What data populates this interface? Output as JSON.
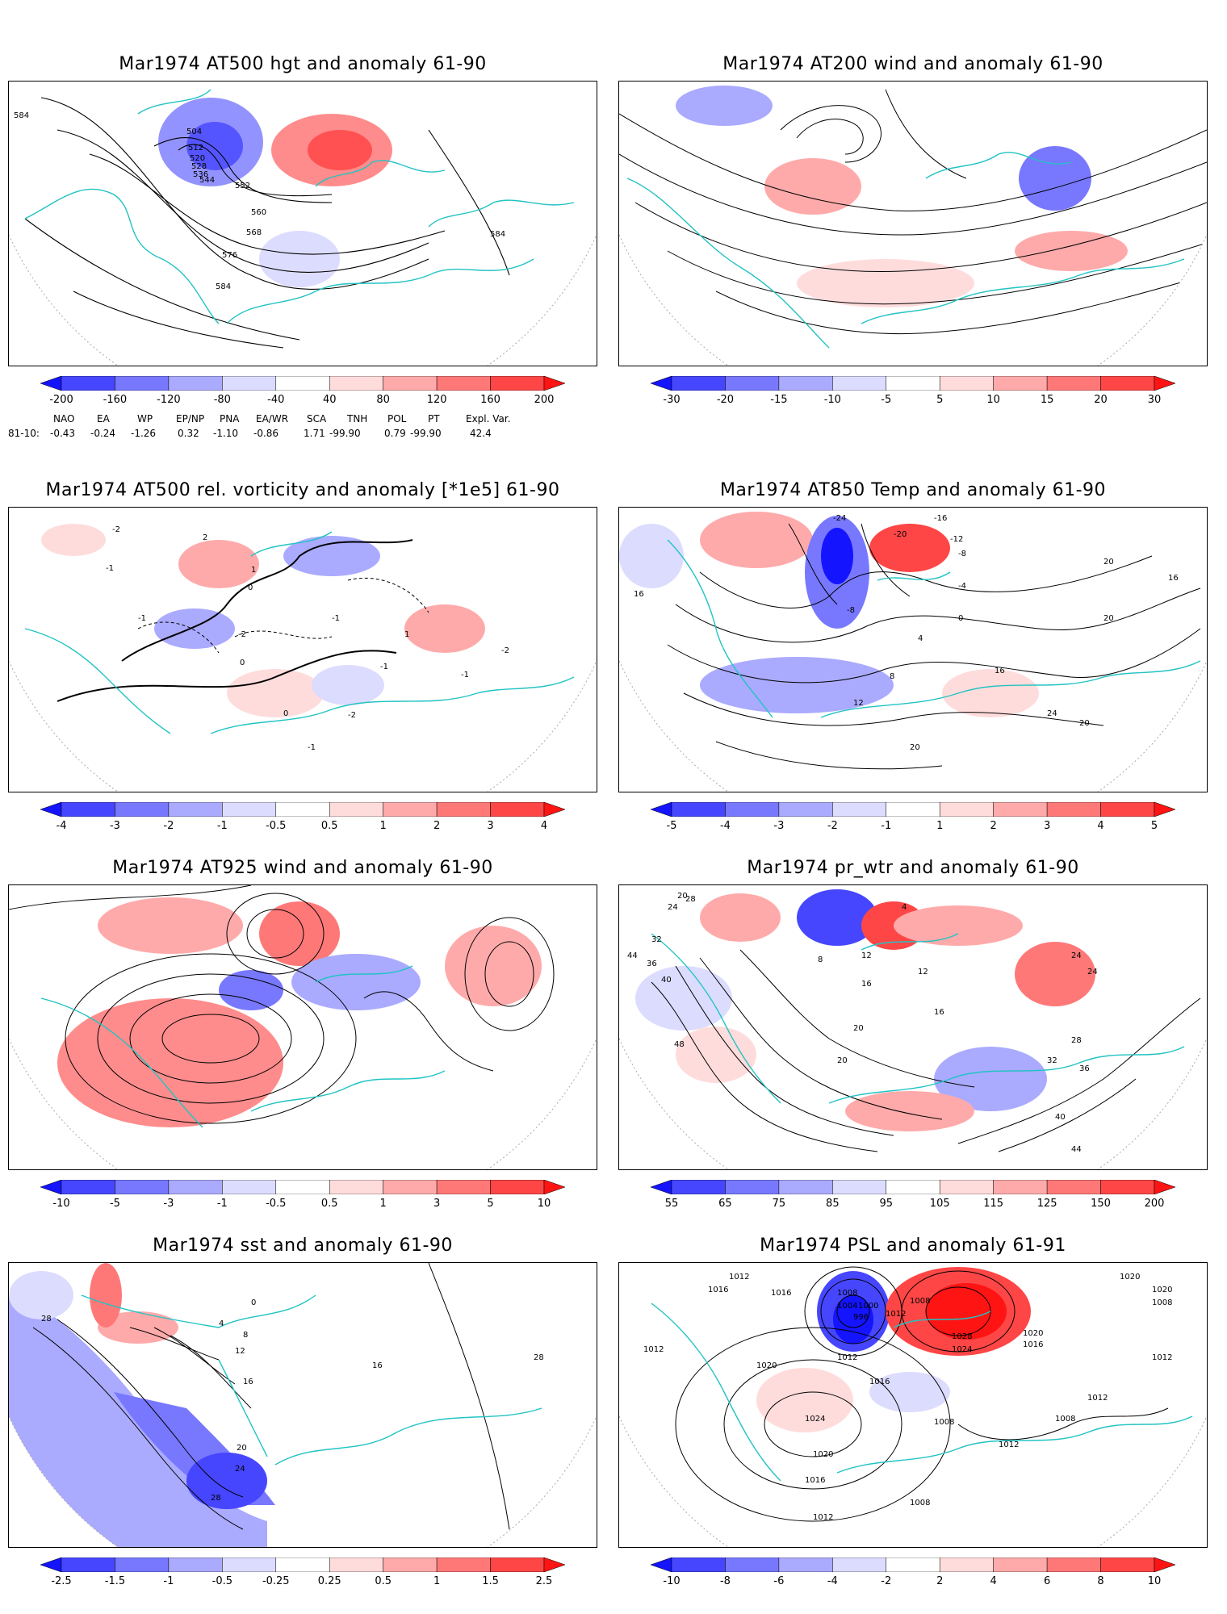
{
  "colors": {
    "coast": "#22c3c3",
    "contour": "#000000",
    "neg_scale": [
      "#1414ff",
      "#4646ff",
      "#7878ff",
      "#aaaaff",
      "#dcdcff"
    ],
    "pos_scale": [
      "#ffdcdc",
      "#ffaaaa",
      "#ff7878",
      "#ff4646",
      "#ff1414"
    ]
  },
  "panels": [
    {
      "id": "p1",
      "title": "Mar1974 AT500 hgt and anomaly 61-90",
      "colorbar": [
        "-200",
        "-160",
        "-120",
        "-80",
        "-40",
        "40",
        "80",
        "120",
        "160",
        "200"
      ],
      "contour_labels": [
        "584",
        "504",
        "512",
        "520",
        "528",
        "536",
        "544",
        "552",
        "560",
        "568",
        "576",
        "584",
        "584"
      ],
      "teleconnection": {
        "headers": [
          "NAO",
          "EA",
          "WP",
          "EP/NP",
          "PNA",
          "EA/WR",
          "SCA",
          "TNH",
          "POL",
          "PT",
          "Expl. Var."
        ],
        "row_label": "81-10:",
        "values": [
          "-0.43",
          "-0.24",
          "-1.26",
          "0.32",
          "-1.10",
          "-0.86",
          "1.71",
          "-99.90",
          "0.79",
          "-99.90",
          "42.4"
        ]
      }
    },
    {
      "id": "p2",
      "title": "Mar1974 AT200 wind and anomaly 61-90",
      "colorbar": [
        "-30",
        "-20",
        "-15",
        "-10",
        "-5",
        "5",
        "10",
        "15",
        "20",
        "30"
      ],
      "contour_labels": []
    },
    {
      "id": "p3",
      "title": "Mar1974 AT500 rel. vorticity and anomaly [*1e5] 61-90",
      "colorbar": [
        "-4",
        "-3",
        "-2",
        "-1",
        "-0.5",
        "0.5",
        "1",
        "2",
        "3",
        "4"
      ],
      "contour_labels": [
        "-2",
        "2",
        "-1",
        "1",
        "0",
        "-1",
        "-2",
        "0",
        "-1",
        "-2",
        "1",
        "-1",
        "0",
        "-1",
        "-2",
        "-1"
      ]
    },
    {
      "id": "p4",
      "title": "Mar1974 AT850 Temp and anomaly 61-90",
      "colorbar": [
        "-5",
        "-4",
        "-3",
        "-2",
        "-1",
        "1",
        "2",
        "3",
        "4",
        "5"
      ],
      "contour_labels": [
        "-24",
        "-16",
        "-20",
        "-12",
        "-8",
        "16",
        "-8",
        "-4",
        "0",
        "4",
        "8",
        "12",
        "16",
        "20",
        "20",
        "24",
        "20",
        "16",
        "20"
      ]
    },
    {
      "id": "p5",
      "title": "Mar1974 AT925 wind and anomaly 61-90",
      "colorbar": [
        "-10",
        "-5",
        "-3",
        "-1",
        "-0.5",
        "0.5",
        "1",
        "3",
        "5",
        "10"
      ],
      "contour_labels": []
    },
    {
      "id": "p6",
      "title": "Mar1974 pr_wtr and anomaly 61-90",
      "colorbar": [
        "55",
        "65",
        "75",
        "85",
        "95",
        "105",
        "115",
        "125",
        "150",
        "200"
      ],
      "contour_labels": [
        "20",
        "24",
        "28",
        "32",
        "36",
        "40",
        "44",
        "48",
        "8",
        "4",
        "12",
        "16",
        "20",
        "24",
        "28",
        "32",
        "36",
        "40",
        "44",
        "12",
        "16",
        "20",
        "24"
      ]
    },
    {
      "id": "p7",
      "title": "Mar1974 sst and anomaly 61-90",
      "colorbar": [
        "-2.5",
        "-1.5",
        "-1",
        "-0.5",
        "-0.25",
        "0.25",
        "0.5",
        "1",
        "1.5",
        "2.5"
      ],
      "contour_labels": [
        "28",
        "0",
        "4",
        "8",
        "12",
        "16",
        "20",
        "24",
        "28",
        "16",
        "28"
      ]
    },
    {
      "id": "p8",
      "title": "Mar1974 PSL and anomaly 61-91",
      "colorbar": [
        "-10",
        "-8",
        "-6",
        "-4",
        "-2",
        "2",
        "4",
        "6",
        "8",
        "10"
      ],
      "contour_labels": [
        "1012",
        "1016",
        "1016",
        "1008",
        "1004",
        "1000",
        "996",
        "1012",
        "1008",
        "1020",
        "1024",
        "1028",
        "1020",
        "1016",
        "1012",
        "1016",
        "1020",
        "1024",
        "1020",
        "1016",
        "1012",
        "1012",
        "1008",
        "1012",
        "1012",
        "1008",
        "1008",
        "1020",
        "1008",
        "1012"
      ]
    }
  ]
}
